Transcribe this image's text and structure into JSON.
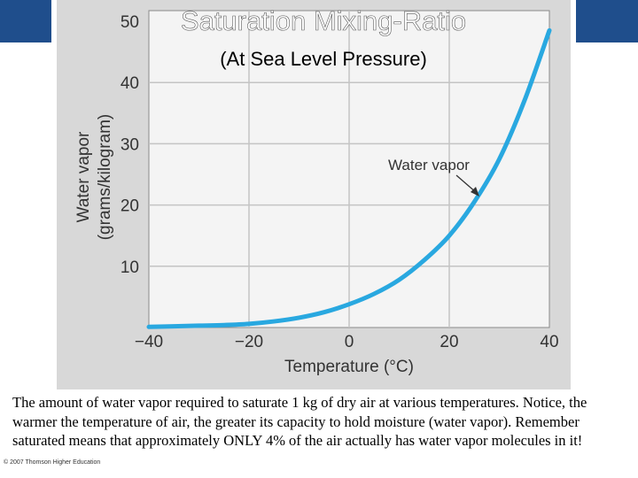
{
  "title": "Saturation Mixing-Ratio",
  "subtitle": "(At Sea Level Pressure)",
  "caption": "The amount of water vapor required to saturate 1 kg of dry air at various temperatures.   Notice, the warmer the temperature of air, the greater its capacity to hold moisture (water vapor).   Remember saturated means that approximately ONLY 4% of the air actually has  water vapor molecules in it!",
  "copyright": "© 2007 Thomson Higher Education",
  "colors": {
    "curve": "#29a8e0",
    "plot_bg": "#d8d8d8",
    "panel": "#f4f4f4",
    "band": "#1f4e8c"
  },
  "chart_data": {
    "type": "line",
    "xlabel": "Temperature (°C)",
    "ylabel_line1": "Water vapor",
    "ylabel_line2": "(grams/kilogram)",
    "xlim": [
      -40,
      40
    ],
    "ylim": [
      0,
      50
    ],
    "x_ticks": [
      "−40",
      "−20",
      "0",
      "20",
      "40"
    ],
    "y_ticks": [
      "10",
      "20",
      "30",
      "40",
      "50"
    ],
    "grid": true,
    "annotation": "Water vapor",
    "series": [
      {
        "x": [
          -40,
          -35,
          -30,
          -25,
          -20,
          -15,
          -10,
          -5,
          0,
          5,
          10,
          15,
          20,
          25,
          30,
          35,
          40
        ],
        "values": [
          0.1,
          0.2,
          0.3,
          0.4,
          0.6,
          1.0,
          1.6,
          2.5,
          3.8,
          5.5,
          7.8,
          11.0,
          15.0,
          20.5,
          27.5,
          37.0,
          48.5
        ]
      }
    ]
  }
}
